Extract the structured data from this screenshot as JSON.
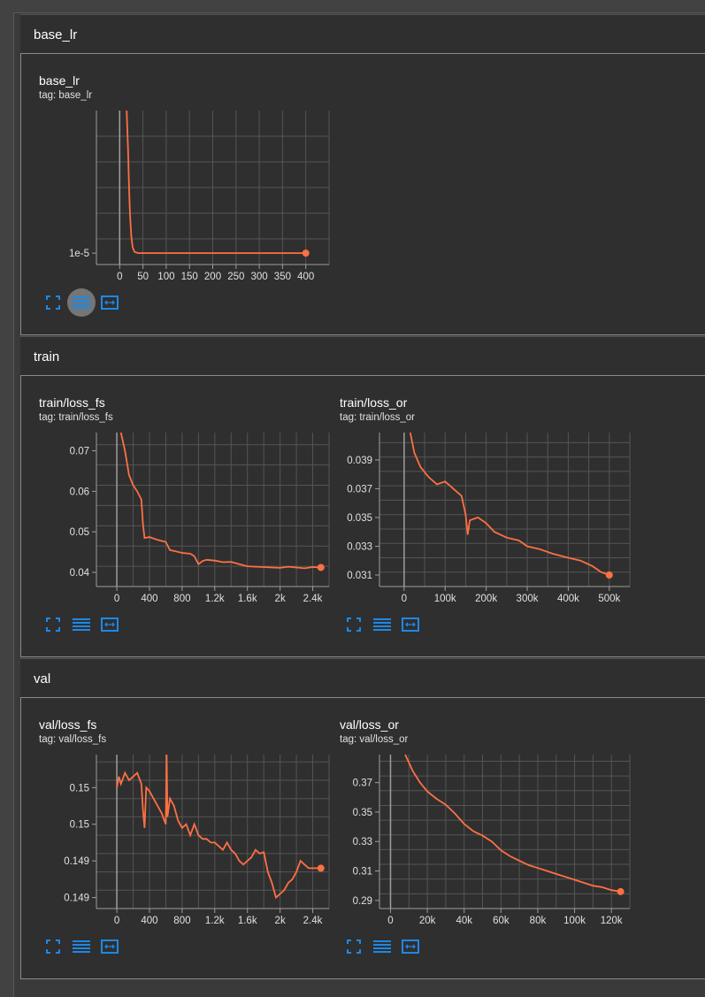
{
  "colors": {
    "line": "#ff7043",
    "accent": "#1e88e5",
    "grid": "#555555"
  },
  "groups": {
    "base_lr": {
      "title": "base_lr"
    },
    "train": {
      "title": "train"
    },
    "val": {
      "title": "val"
    }
  },
  "cards": {
    "base_lr": {
      "title": "base_lr",
      "tag": "tag: base_lr"
    },
    "train_loss_fs": {
      "title": "train/loss_fs",
      "tag": "tag: train/loss_fs"
    },
    "train_loss_or": {
      "title": "train/loss_or",
      "tag": "tag: train/loss_or"
    },
    "val_loss_fs": {
      "title": "val/loss_fs",
      "tag": "tag: val/loss_fs"
    },
    "val_loss_or": {
      "title": "val/loss_or",
      "tag": "tag: val/loss_or"
    }
  },
  "chart_data": [
    {
      "id": "base_lr",
      "type": "line",
      "title": "base_lr",
      "x_ticks": [
        "0",
        "50",
        "100",
        "150",
        "200",
        "250",
        "300",
        "350",
        "400"
      ],
      "x_tick_values": [
        0,
        50,
        100,
        150,
        200,
        250,
        300,
        350,
        400
      ],
      "y_ticks": [
        "1e-5"
      ],
      "y_tick_values": [
        1e-05
      ],
      "xlim": [
        -50,
        450
      ],
      "ylim": [
        8e-06,
        3.5e-05
      ],
      "series": [
        {
          "x": [
            15,
            18,
            20,
            22,
            25,
            28,
            32,
            40,
            100,
            200,
            300,
            400
          ],
          "y": [
            3.5e-05,
            2.8e-05,
            2.2e-05,
            1.7e-05,
            1.3e-05,
            1.1e-05,
            1.02e-05,
            1e-05,
            1e-05,
            1e-05,
            1e-05,
            1e-05
          ]
        }
      ]
    },
    {
      "id": "train_loss_fs",
      "type": "line",
      "title": "train/loss_fs",
      "x_ticks": [
        "0",
        "400",
        "800",
        "1.2k",
        "1.6k",
        "2k",
        "2.4k"
      ],
      "x_tick_values": [
        0,
        400,
        800,
        1200,
        1600,
        2000,
        2400
      ],
      "y_ticks": [
        "0.07",
        "0.06",
        "0.05",
        "0.04"
      ],
      "y_tick_values": [
        0.07,
        0.06,
        0.05,
        0.04
      ],
      "xlim": [
        -250,
        2600
      ],
      "ylim": [
        0.0365,
        0.0745
      ],
      "series": [
        {
          "x": [
            50,
            100,
            150,
            200,
            250,
            300,
            320,
            340,
            400,
            500,
            600,
            650,
            700,
            800,
            900,
            950,
            1000,
            1050,
            1100,
            1200,
            1300,
            1400,
            1500,
            1600,
            1700,
            1800,
            1900,
            2000,
            2100,
            2200,
            2300,
            2400,
            2500
          ],
          "y": [
            0.0745,
            0.07,
            0.064,
            0.0615,
            0.06,
            0.058,
            0.052,
            0.0485,
            0.0487,
            0.048,
            0.0475,
            0.0455,
            0.0453,
            0.0448,
            0.0446,
            0.044,
            0.042,
            0.0428,
            0.0431,
            0.0429,
            0.0425,
            0.0426,
            0.042,
            0.0415,
            0.0414,
            0.0413,
            0.0412,
            0.0411,
            0.0414,
            0.0412,
            0.041,
            0.0413,
            0.0412
          ]
        }
      ]
    },
    {
      "id": "train_loss_or",
      "type": "line",
      "title": "train/loss_or",
      "x_ticks": [
        "0",
        "100k",
        "200k",
        "300k",
        "400k",
        "500k"
      ],
      "x_tick_values": [
        0,
        100000,
        200000,
        300000,
        400000,
        500000
      ],
      "y_ticks": [
        "0.039",
        "0.037",
        "0.035",
        "0.033",
        "0.031"
      ],
      "y_tick_values": [
        0.039,
        0.037,
        0.035,
        0.033,
        0.031
      ],
      "xlim": [
        -60000,
        550000
      ],
      "ylim": [
        0.0302,
        0.0409
      ],
      "series": [
        {
          "x": [
            15000,
            25000,
            40000,
            60000,
            80000,
            100000,
            120000,
            140000,
            150000,
            155000,
            160000,
            180000,
            200000,
            220000,
            250000,
            280000,
            300000,
            330000,
            360000,
            400000,
            430000,
            460000,
            480000,
            500000
          ],
          "y": [
            0.0409,
            0.0395,
            0.0385,
            0.0378,
            0.0373,
            0.0375,
            0.037,
            0.0365,
            0.0352,
            0.0338,
            0.0348,
            0.035,
            0.0346,
            0.034,
            0.0336,
            0.0334,
            0.033,
            0.0328,
            0.0325,
            0.0322,
            0.032,
            0.0316,
            0.0312,
            0.031
          ]
        }
      ]
    },
    {
      "id": "val_loss_fs",
      "type": "line",
      "title": "val/loss_fs",
      "x_ticks": [
        "0",
        "400",
        "800",
        "1.2k",
        "1.6k",
        "2k",
        "2.4k"
      ],
      "x_tick_values": [
        0,
        400,
        800,
        1200,
        1600,
        2000,
        2400
      ],
      "y_ticks": [
        "0.15",
        "0.15",
        "0.149",
        "0.149"
      ],
      "y_tick_values": [
        0.1505,
        0.15,
        0.1495,
        0.149
      ],
      "xlim": [
        -250,
        2600
      ],
      "ylim": [
        0.14885,
        0.15095
      ],
      "series": [
        {
          "x": [
            0,
            25,
            50,
            100,
            150,
            200,
            250,
            300,
            320,
            340,
            360,
            400,
            450,
            500,
            550,
            600,
            610,
            620,
            650,
            700,
            750,
            800,
            850,
            900,
            950,
            1000,
            1050,
            1100,
            1150,
            1200,
            1300,
            1350,
            1400,
            1450,
            1500,
            1550,
            1600,
            1650,
            1700,
            1750,
            1800,
            1850,
            1900,
            1950,
            2000,
            2050,
            2100,
            2150,
            2200,
            2250,
            2300,
            2350,
            2400,
            2450,
            2500
          ],
          "y": [
            0.1505,
            0.15065,
            0.15055,
            0.1507,
            0.1506,
            0.15065,
            0.1507,
            0.15055,
            0.1502,
            0.14995,
            0.1505,
            0.15045,
            0.15035,
            0.15025,
            0.15015,
            0.15,
            0.15095,
            0.1501,
            0.15035,
            0.15025,
            0.15005,
            0.14995,
            0.15,
            0.14985,
            0.15,
            0.14985,
            0.1498,
            0.1498,
            0.14975,
            0.14975,
            0.14965,
            0.14975,
            0.14965,
            0.1496,
            0.1495,
            0.14945,
            0.1495,
            0.14955,
            0.14965,
            0.1496,
            0.14962,
            0.14935,
            0.1492,
            0.149,
            0.14905,
            0.1491,
            0.1492,
            0.14925,
            0.14935,
            0.1495,
            0.14945,
            0.1494,
            0.1494,
            0.1494,
            0.1494
          ]
        }
      ]
    },
    {
      "id": "val_loss_or",
      "type": "line",
      "title": "val/loss_or",
      "x_ticks": [
        "0",
        "20k",
        "40k",
        "60k",
        "80k",
        "100k",
        "120k"
      ],
      "x_tick_values": [
        0,
        20000,
        40000,
        60000,
        80000,
        100000,
        120000
      ],
      "y_ticks": [
        "0.37",
        "0.35",
        "0.33",
        "0.31",
        "0.29"
      ],
      "y_tick_values": [
        0.37,
        0.35,
        0.33,
        0.31,
        0.29
      ],
      "xlim": [
        -6000,
        130000
      ],
      "ylim": [
        0.2845,
        0.389
      ],
      "series": [
        {
          "x": [
            8000,
            12000,
            16000,
            20000,
            25000,
            30000,
            35000,
            40000,
            45000,
            50000,
            55000,
            60000,
            65000,
            70000,
            75000,
            80000,
            85000,
            90000,
            95000,
            100000,
            105000,
            110000,
            115000,
            120000,
            125000
          ],
          "y": [
            0.389,
            0.378,
            0.37,
            0.364,
            0.359,
            0.355,
            0.349,
            0.342,
            0.337,
            0.334,
            0.33,
            0.324,
            0.32,
            0.317,
            0.314,
            0.312,
            0.31,
            0.308,
            0.306,
            0.304,
            0.302,
            0.3,
            0.299,
            0.297,
            0.296
          ]
        }
      ]
    }
  ]
}
